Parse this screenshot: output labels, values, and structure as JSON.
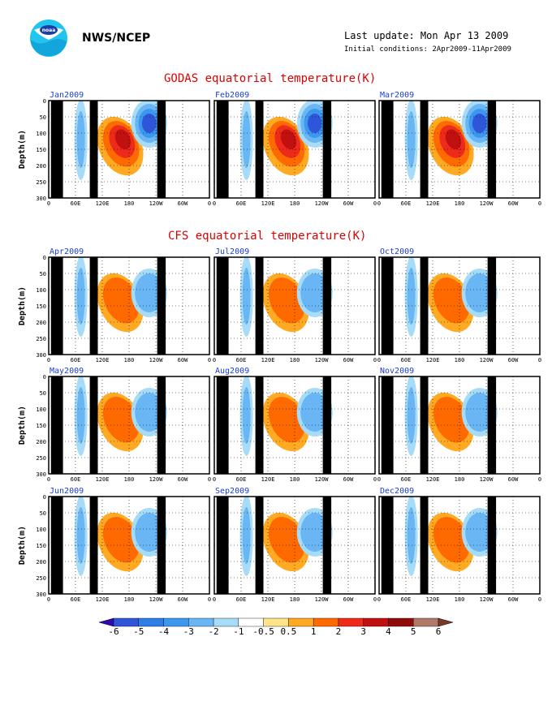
{
  "header": {
    "org": "NWS/NCEP",
    "last_update": "Last update: Mon Apr 13 2009",
    "initial_conditions": "Initial conditions: 2Apr2009-11Apr2009"
  },
  "colors": {
    "title": "#e00000",
    "panel_label": "#1a3fd0",
    "land_mask": "#000000"
  },
  "chart_data": {
    "type": "heatmap",
    "sections": [
      {
        "title": "GODAS equatorial temperature(K)",
        "panels": [
          "Jan2009",
          "Feb2009",
          "Mar2009"
        ]
      },
      {
        "title": "CFS equatorial temperature(K)",
        "panels": [
          "Apr2009",
          "Jul2009",
          "Oct2009",
          "May2009",
          "Aug2009",
          "Nov2009",
          "Jun2009",
          "Sep2009",
          "Dec2009"
        ]
      }
    ],
    "x_ticks": [
      "0",
      "60E",
      "120E",
      "180",
      "120W",
      "60W",
      "0"
    ],
    "x_tick_lon": [
      0,
      60,
      120,
      180,
      240,
      300,
      360
    ],
    "xlim": [
      0,
      360
    ],
    "ylabel": "Depth(m)",
    "y_ticks": [
      "0",
      "50",
      "100",
      "150",
      "200",
      "250",
      "300"
    ],
    "y_tick_values": [
      0,
      50,
      100,
      150,
      200,
      250,
      300
    ],
    "ylim": [
      300,
      0
    ],
    "grid": true,
    "land_mask_lon": [
      [
        5,
        32
      ],
      [
        92,
        110
      ],
      [
        243,
        262
      ]
    ],
    "colorbar": {
      "labels": [
        "-6",
        "-5",
        "-4",
        "-3",
        "-2",
        "-1",
        "-0.5",
        "0.5",
        "1",
        "2",
        "3",
        "4",
        "5",
        "6"
      ],
      "colors": [
        "#2f0ab0",
        "#2f55d8",
        "#2e7ee6",
        "#3c98ee",
        "#6ab6f4",
        "#a7dcf8",
        "#ffffff",
        "#ffe48a",
        "#ffaa22",
        "#ff6a00",
        "#ee2a1a",
        "#c01010",
        "#900c0c",
        "#b07a6a",
        "#7a3a2a"
      ]
    }
  }
}
